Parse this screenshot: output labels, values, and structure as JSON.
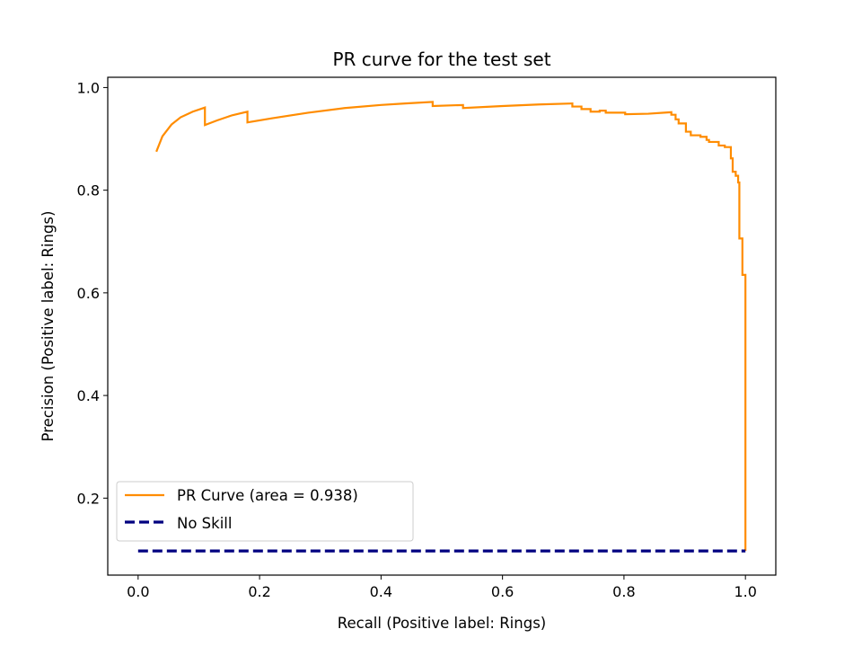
{
  "chart_data": {
    "type": "line",
    "title": "PR curve for the test set",
    "xlabel": "Recall (Positive label: Rings)",
    "ylabel": "Precision (Positive label: Rings)",
    "xlim": [
      -0.05,
      1.05
    ],
    "ylim": [
      0.05,
      1.02
    ],
    "xticks": [
      0.0,
      0.2,
      0.4,
      0.6,
      0.8,
      1.0
    ],
    "xtick_labels": [
      "0.0",
      "0.2",
      "0.4",
      "0.6",
      "0.8",
      "1.0"
    ],
    "yticks": [
      0.2,
      0.4,
      0.6,
      0.8,
      1.0
    ],
    "ytick_labels": [
      "0.2",
      "0.4",
      "0.6",
      "0.8",
      "1.0"
    ],
    "grid": false,
    "legend_position": "lower-left",
    "series": [
      {
        "name": "PR Curve (area = 0.938)",
        "color": "#ff8c00",
        "style": "solid",
        "points": [
          [
            0.03,
            0.875
          ],
          [
            0.04,
            0.905
          ],
          [
            0.055,
            0.928
          ],
          [
            0.07,
            0.942
          ],
          [
            0.09,
            0.953
          ],
          [
            0.11,
            0.961
          ],
          [
            0.11,
            0.927
          ],
          [
            0.13,
            0.936
          ],
          [
            0.155,
            0.946
          ],
          [
            0.18,
            0.953
          ],
          [
            0.18,
            0.932
          ],
          [
            0.22,
            0.94
          ],
          [
            0.28,
            0.951
          ],
          [
            0.34,
            0.96
          ],
          [
            0.4,
            0.966
          ],
          [
            0.44,
            0.969
          ],
          [
            0.485,
            0.972
          ],
          [
            0.485,
            0.964
          ],
          [
            0.535,
            0.966
          ],
          [
            0.535,
            0.96
          ],
          [
            0.6,
            0.964
          ],
          [
            0.66,
            0.967
          ],
          [
            0.715,
            0.969
          ],
          [
            0.715,
            0.963
          ],
          [
            0.73,
            0.963
          ],
          [
            0.73,
            0.958
          ],
          [
            0.745,
            0.958
          ],
          [
            0.745,
            0.953
          ],
          [
            0.76,
            0.953
          ],
          [
            0.76,
            0.955
          ],
          [
            0.77,
            0.955
          ],
          [
            0.77,
            0.951
          ],
          [
            0.802,
            0.951
          ],
          [
            0.802,
            0.948
          ],
          [
            0.84,
            0.949
          ],
          [
            0.878,
            0.952
          ],
          [
            0.878,
            0.947
          ],
          [
            0.885,
            0.947
          ],
          [
            0.885,
            0.938
          ],
          [
            0.89,
            0.938
          ],
          [
            0.89,
            0.93
          ],
          [
            0.902,
            0.93
          ],
          [
            0.902,
            0.914
          ],
          [
            0.91,
            0.914
          ],
          [
            0.91,
            0.907
          ],
          [
            0.926,
            0.907
          ],
          [
            0.926,
            0.904
          ],
          [
            0.936,
            0.904
          ],
          [
            0.936,
            0.898
          ],
          [
            0.94,
            0.898
          ],
          [
            0.94,
            0.894
          ],
          [
            0.956,
            0.894
          ],
          [
            0.956,
            0.887
          ],
          [
            0.966,
            0.887
          ],
          [
            0.966,
            0.884
          ],
          [
            0.976,
            0.884
          ],
          [
            0.976,
            0.862
          ],
          [
            0.979,
            0.862
          ],
          [
            0.979,
            0.836
          ],
          [
            0.984,
            0.836
          ],
          [
            0.984,
            0.828
          ],
          [
            0.988,
            0.828
          ],
          [
            0.988,
            0.815
          ],
          [
            0.99,
            0.815
          ],
          [
            0.99,
            0.706
          ],
          [
            0.995,
            0.706
          ],
          [
            0.995,
            0.635
          ],
          [
            1.0,
            0.635
          ],
          [
            1.0,
            0.097
          ]
        ]
      },
      {
        "name": "No Skill",
        "color": "#000080",
        "style": "dashed",
        "points": [
          [
            0.0,
            0.097
          ],
          [
            1.0,
            0.097
          ]
        ]
      }
    ]
  }
}
